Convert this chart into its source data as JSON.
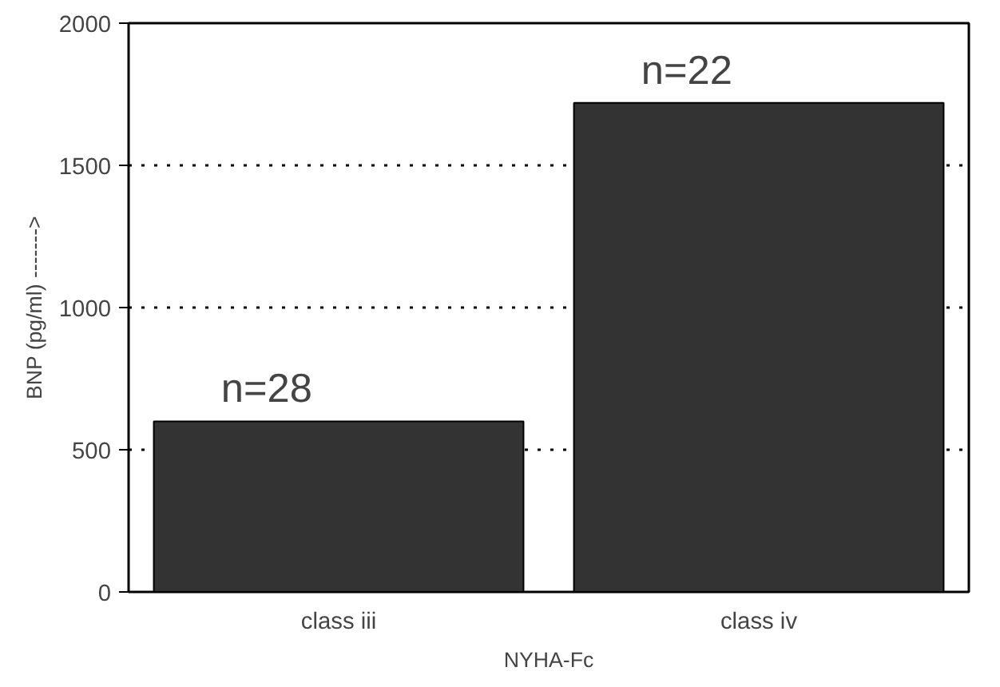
{
  "chart_data": {
    "type": "bar",
    "xlabel": "NYHA-Fc",
    "ylabel": "BNP (pg/ml) ------->",
    "categories": [
      "class iii",
      "class iv"
    ],
    "values": [
      600,
      1720
    ],
    "color": "#333333",
    "ylim": [
      0,
      2000
    ],
    "yticks": [
      0,
      500,
      1000,
      1500,
      2000
    ],
    "grid": "y",
    "annotations": [
      {
        "text": "n=28",
        "x": "class iii",
        "y": 600
      },
      {
        "text": "n=22",
        "x": "class iv",
        "y": 1720
      }
    ]
  }
}
